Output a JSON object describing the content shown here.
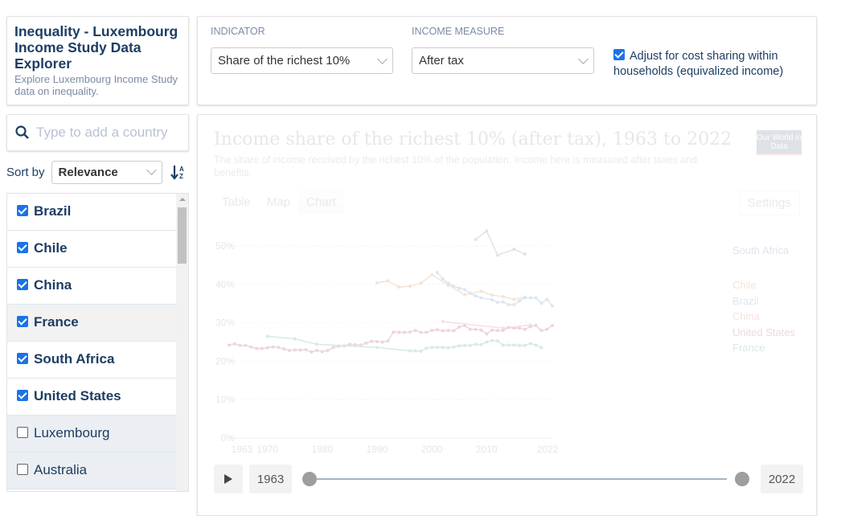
{
  "explorer": {
    "title": "Inequality - Luxembourg Income Study Data Explorer",
    "subtitle": "Explore Luxembourg Income Study data on inequality."
  },
  "search": {
    "placeholder": "Type to add a country",
    "icon": "search-icon"
  },
  "sort": {
    "label": "Sort by",
    "value": "Relevance",
    "order_icon": "sort-alpha-icon"
  },
  "countries": [
    {
      "name": "Brazil",
      "checked": true
    },
    {
      "name": "Chile",
      "checked": true
    },
    {
      "name": "China",
      "checked": true
    },
    {
      "name": "France",
      "checked": true
    },
    {
      "name": "South Africa",
      "checked": true
    },
    {
      "name": "United States",
      "checked": true
    },
    {
      "name": "Luxembourg",
      "checked": false
    },
    {
      "name": "Australia",
      "checked": false
    }
  ],
  "controls": {
    "indicator_label": "INDICATOR",
    "indicator_value": "Share of the richest 10%",
    "income_label": "INCOME MEASURE",
    "income_value": "After tax",
    "equivalized_label": "Adjust for cost sharing within households (equivalized income)",
    "equivalized_checked": true
  },
  "chart_header": {
    "title": "Income share of the richest 10% (after tax), 1963 to 2022",
    "subtitle": "The share of income received by the richest 10% of the population. Income here is measured after taxes and benefits.",
    "logo": "Our World in Data",
    "tabs": [
      "Table",
      "Map",
      "Chart"
    ],
    "active_tab": "Chart",
    "settings": "Settings"
  },
  "timeline": {
    "start": "1963",
    "end": "2022",
    "play_icon": "play-icon"
  },
  "chart_data": {
    "type": "line",
    "ylim": [
      0,
      55
    ],
    "xlim": [
      1963,
      2022
    ],
    "yticks": [
      "0%",
      "10%",
      "20%",
      "30%",
      "40%",
      "50%"
    ],
    "ytick_values": [
      0,
      10,
      20,
      30,
      40,
      50
    ],
    "xticks": [
      "1963",
      "1970",
      "1980",
      "1990",
      "2000",
      "2010",
      "2022"
    ],
    "grid": true,
    "legend": "right-inline-labels",
    "series": [
      {
        "name": "South Africa",
        "color": "#6d3e91",
        "x": [
          2008,
          2010,
          2012,
          2015,
          2017
        ],
        "y": [
          51.7,
          53.9,
          47.6,
          49.1,
          47.9
        ]
      },
      {
        "name": "Chile",
        "color": "#c05917",
        "x": [
          1990,
          1992,
          1994,
          1996,
          1998,
          2000,
          2003,
          2006,
          2009,
          2011,
          2013,
          2015,
          2017
        ],
        "y": [
          40.4,
          40.9,
          39.3,
          39.5,
          40.3,
          42.5,
          39.8,
          37.3,
          38.2,
          37.2,
          36.8,
          36.1,
          36.7
        ]
      },
      {
        "name": "Brazil",
        "color": "#286bbb",
        "x": [
          2001,
          2002,
          2003,
          2004,
          2005,
          2006,
          2007,
          2008,
          2009,
          2011,
          2012,
          2013,
          2014,
          2015,
          2016,
          2017,
          2018,
          2019,
          2020,
          2021,
          2022
        ],
        "y": [
          43.1,
          41.4,
          40.3,
          39.5,
          39.0,
          38.6,
          37.7,
          37.0,
          36.5,
          36.0,
          35.3,
          35.4,
          34.7,
          34.7,
          35.7,
          36.5,
          36.5,
          36.5,
          35.1,
          36.1,
          34.4
        ]
      },
      {
        "name": "China",
        "color": "#d73c50",
        "x": [
          2002,
          2013,
          2018
        ],
        "y": [
          30.3,
          28.6,
          29.4
        ]
      },
      {
        "name": "United States",
        "color": "#970046",
        "x": [
          1963,
          1964,
          1965,
          1966,
          1967,
          1968,
          1969,
          1970,
          1971,
          1972,
          1973,
          1974,
          1975,
          1976,
          1977,
          1978,
          1979,
          1980,
          1981,
          1982,
          1983,
          1984,
          1985,
          1986,
          1987,
          1988,
          1989,
          1990,
          1991,
          1992,
          1993,
          1994,
          1995,
          1996,
          1997,
          1998,
          1999,
          2000,
          2001,
          2002,
          2003,
          2004,
          2005,
          2006,
          2007,
          2008,
          2009,
          2010,
          2011,
          2012,
          2013,
          2014,
          2015,
          2016,
          2017,
          2018,
          2019,
          2020,
          2021,
          2022
        ],
        "y": [
          24.2,
          24.5,
          24.1,
          24.1,
          23.7,
          23.3,
          23.3,
          23.5,
          23.7,
          23.6,
          23.2,
          22.8,
          22.9,
          22.9,
          23.0,
          22.4,
          22.8,
          22.5,
          22.8,
          23.6,
          23.9,
          24.0,
          24.4,
          24.3,
          24.2,
          24.7,
          25.2,
          25.1,
          25.0,
          25.3,
          27.6,
          27.5,
          27.5,
          27.6,
          28.0,
          27.5,
          27.5,
          28.0,
          28.2,
          27.9,
          28.0,
          27.9,
          28.9,
          29.3,
          28.3,
          28.3,
          28.1,
          27.1,
          28.1,
          28.0,
          28.0,
          28.8,
          28.6,
          28.6,
          28.3,
          29.0,
          29.3,
          28.0,
          28.3,
          29.3
        ]
      },
      {
        "name": "France",
        "color": "#00847e",
        "x": [
          1970,
          1975,
          1979,
          1990,
          1996,
          1997,
          1998,
          1999,
          2000,
          2001,
          2002,
          2003,
          2004,
          2005,
          2006,
          2007,
          2008,
          2009,
          2010,
          2011,
          2012,
          2013,
          2014,
          2015,
          2016,
          2017,
          2018,
          2019,
          2020
        ],
        "y": [
          26.5,
          25.8,
          24.4,
          23.6,
          22.7,
          22.7,
          22.6,
          23.4,
          23.6,
          23.6,
          23.6,
          23.5,
          23.7,
          24.0,
          24.1,
          24.1,
          24.4,
          24.3,
          25.0,
          25.4,
          25.3,
          24.2,
          24.2,
          24.2,
          24.1,
          24.1,
          24.6,
          24.2,
          23.5
        ]
      }
    ]
  }
}
